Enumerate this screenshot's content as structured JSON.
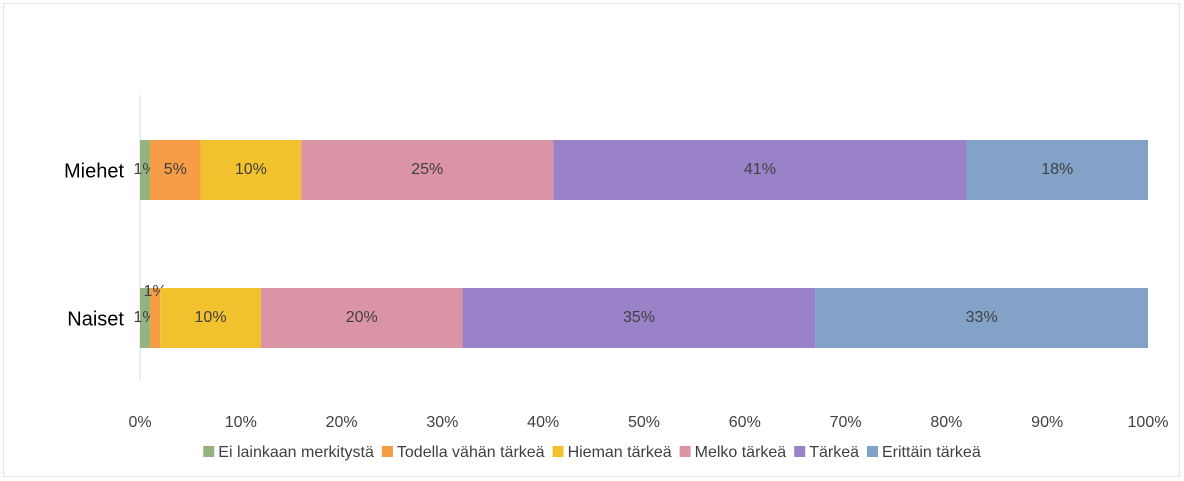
{
  "chart_data": {
    "type": "stacked-bar-horizontal",
    "categories": [
      "Miehet",
      "Naiset"
    ],
    "series": [
      {
        "name": "Ei lainkaan merkitystä",
        "color": "#94b37f",
        "values": [
          1,
          1
        ],
        "value_labels": [
          "1%",
          "1%"
        ]
      },
      {
        "name": "Todella vähän tärkeä",
        "color": "#f59c45",
        "values": [
          5,
          1
        ],
        "value_labels": [
          "5%",
          "1%"
        ]
      },
      {
        "name": "Hieman tärkeä",
        "color": "#f2c12e",
        "values": [
          10,
          10
        ],
        "value_labels": [
          "10%",
          "10%"
        ]
      },
      {
        "name": "Melko tärkeä",
        "color": "#da94a6",
        "values": [
          25,
          20
        ],
        "value_labels": [
          "25%",
          "20%"
        ]
      },
      {
        "name": "Tärkeä",
        "color": "#9a82c8",
        "values": [
          41,
          35
        ],
        "value_labels": [
          "41%",
          "35%"
        ]
      },
      {
        "name": "Erittäin tärkeä",
        "color": "#82a2c8",
        "values": [
          18,
          33
        ],
        "value_labels": [
          "18%",
          "33%"
        ]
      }
    ],
    "xlim": [
      0,
      100
    ],
    "xticks": [
      {
        "value": 0,
        "label": "0%"
      },
      {
        "value": 10,
        "label": "10%"
      },
      {
        "value": 20,
        "label": "20%"
      },
      {
        "value": 30,
        "label": "30%"
      },
      {
        "value": 40,
        "label": "40%"
      },
      {
        "value": 50,
        "label": "50%"
      },
      {
        "value": 60,
        "label": "60%"
      },
      {
        "value": 70,
        "label": "70%"
      },
      {
        "value": 80,
        "label": "80%"
      },
      {
        "value": 90,
        "label": "90%"
      },
      {
        "value": 100,
        "label": "100%"
      }
    ],
    "legend": "bottom"
  }
}
